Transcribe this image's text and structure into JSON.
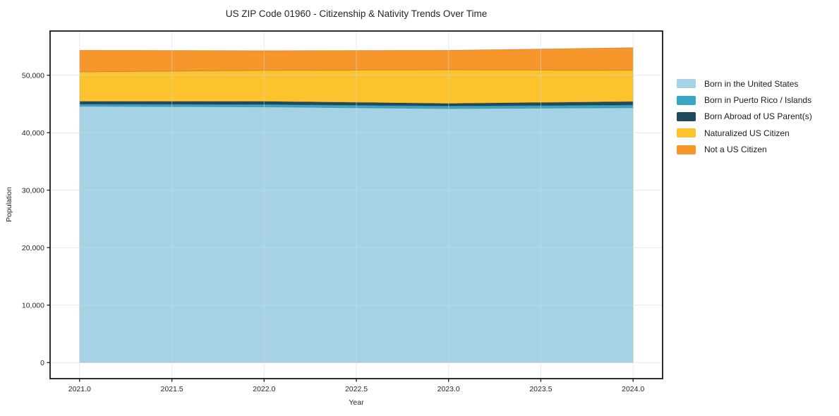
{
  "chart_data": {
    "type": "area",
    "stacked": true,
    "title": "US ZIP Code 01960 - Citizenship & Nativity Trends Over Time",
    "xlabel": "Year",
    "ylabel": "Population",
    "x": [
      2021,
      2022,
      2023,
      2024
    ],
    "series": [
      {
        "name": "Born in the United States",
        "color": "#a5d3e5",
        "values": [
          44600,
          44500,
          44200,
          44350
        ]
      },
      {
        "name": "Born in Puerto Rico / Islands",
        "color": "#39a7c4",
        "values": [
          380,
          420,
          450,
          490
        ]
      },
      {
        "name": "Born Abroad of US Parent(s)",
        "color": "#1f4a5e",
        "values": [
          480,
          530,
          450,
          580
        ]
      },
      {
        "name": "Naturalized US Citizen",
        "color": "#fcc32d",
        "values": [
          5150,
          5400,
          5850,
          5450
        ]
      },
      {
        "name": "Not a US Citizen",
        "color": "#f7962a",
        "values": [
          3750,
          3450,
          3400,
          3950
        ]
      }
    ],
    "stack_totals": [
      54360,
      54300,
      54350,
      54820
    ],
    "xticks": [
      2021.0,
      2021.5,
      2022.0,
      2022.5,
      2023.0,
      2023.5,
      2024.0
    ],
    "xtick_labels": [
      "2021.0",
      "2021.5",
      "2022.0",
      "2022.5",
      "2023.0",
      "2023.5",
      "2024.0"
    ],
    "yticks": [
      0,
      10000,
      20000,
      30000,
      40000,
      50000
    ],
    "ytick_labels": [
      "0",
      "10,000",
      "20,000",
      "30,000",
      "40,000",
      "50,000"
    ],
    "xlim": [
      2020.84,
      2024.16
    ],
    "ylim": [
      -2800,
      57700
    ],
    "grid": true,
    "legend_position": "right-outside",
    "colors": {
      "background": "#ffffff",
      "spine": "#1a1a1a",
      "gridline": "#d8d8d8",
      "text": "#262626"
    }
  }
}
